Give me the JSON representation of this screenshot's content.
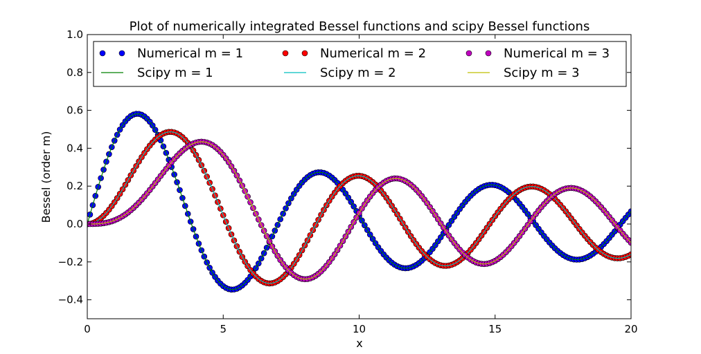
{
  "chart_data": {
    "type": "line",
    "title": "Plot of numerically integrated Bessel functions and scipy Bessel functions",
    "xlabel": "x",
    "ylabel": "Bessel (order m)",
    "xlim": [
      0,
      20
    ],
    "ylim": [
      -0.5,
      1.0
    ],
    "xticks": [
      0,
      5,
      10,
      15,
      20
    ],
    "xtick_labels": [
      "0",
      "5",
      "10",
      "15",
      "20"
    ],
    "yticks": [
      -0.4,
      -0.2,
      0.0,
      0.2,
      0.4,
      0.6,
      0.8,
      1.0
    ],
    "ytick_labels": [
      "−0.4",
      "−0.2",
      "0.0",
      "0.2",
      "0.4",
      "0.6",
      "0.8",
      "1.0"
    ],
    "grid": false,
    "legend_position": "top",
    "legend_columns": 3,
    "x_step": 0.1,
    "series": [
      {
        "name": "Numerical m = 1",
        "kind": "markers",
        "order": 1,
        "color": "#0000ff"
      },
      {
        "name": "Scipy m = 1",
        "kind": "line",
        "order": 1,
        "color": "#008000"
      },
      {
        "name": "Numerical m = 2",
        "kind": "markers",
        "order": 2,
        "color": "#ff0000"
      },
      {
        "name": "Scipy m = 2",
        "kind": "line",
        "order": 2,
        "color": "#00bfbf"
      },
      {
        "name": "Numerical m = 3",
        "kind": "markers",
        "order": 3,
        "color": "#bf00bf"
      },
      {
        "name": "Scipy m = 3",
        "kind": "line",
        "order": 3,
        "color": "#bfbf00"
      }
    ]
  }
}
